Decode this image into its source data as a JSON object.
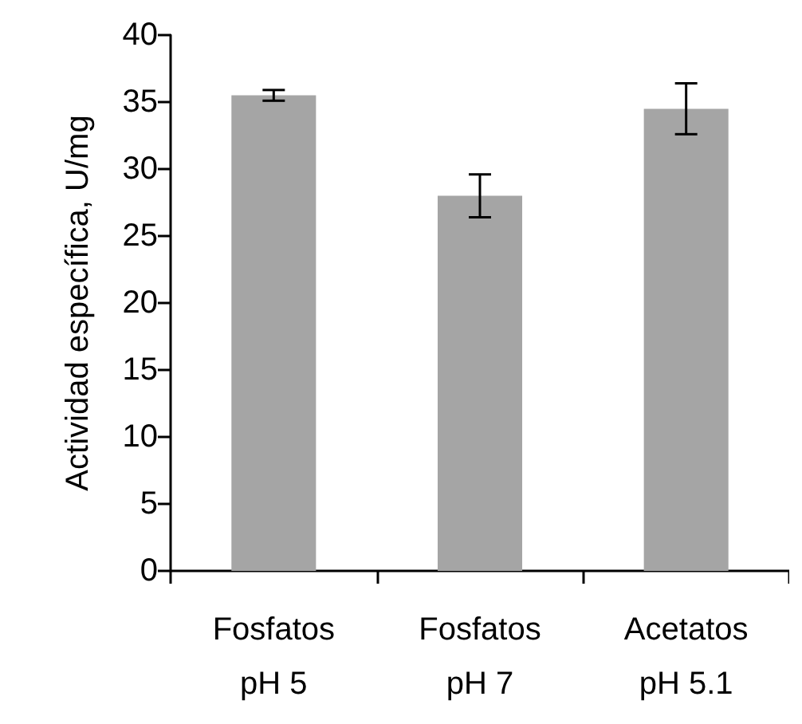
{
  "chart_data": {
    "type": "bar",
    "ylabel": "Actividad específica, U/mg",
    "categories": [
      "Fosfatos\npH 5",
      "Fosfatos\npH 7",
      "Acetatos\npH 5.1"
    ],
    "values": [
      35.5,
      28.0,
      34.5
    ],
    "errors": [
      0.4,
      1.6,
      1.9
    ],
    "color": "#a5a5a5",
    "ylim": [
      0,
      40
    ],
    "yticks": [
      0,
      5,
      10,
      15,
      20,
      25,
      30,
      35,
      40
    ],
    "grid": false
  }
}
